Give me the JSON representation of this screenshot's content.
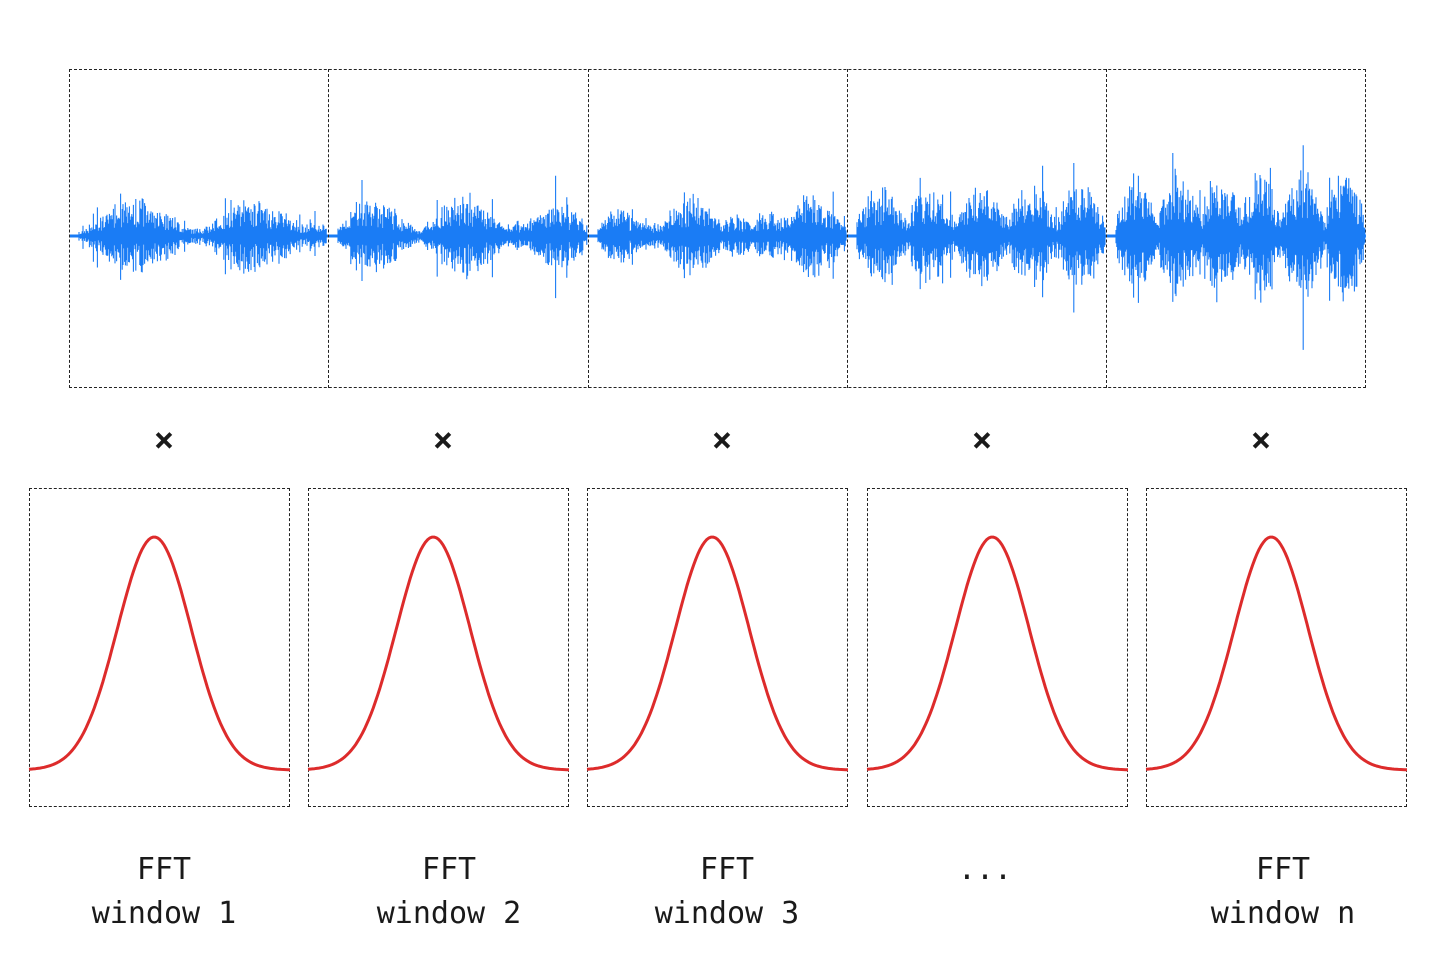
{
  "colors": {
    "waveform": "#1a7cf5",
    "window": "#dd2b2b",
    "frame": "#222222",
    "text": "#1a1a1a"
  },
  "operator": "×",
  "windows": [
    {
      "label_top": "FFT",
      "label_bottom": "window 1",
      "amplitude": 0.55
    },
    {
      "label_top": "FFT",
      "label_bottom": "window 2",
      "amplitude": 0.6
    },
    {
      "label_top": "FFT",
      "label_bottom": "window 3",
      "amplitude": 0.62
    },
    {
      "label_top": "",
      "label_bottom": "...",
      "amplitude": 0.75
    },
    {
      "label_top": "FFT",
      "label_bottom": "window n",
      "amplitude": 0.95
    }
  ]
}
